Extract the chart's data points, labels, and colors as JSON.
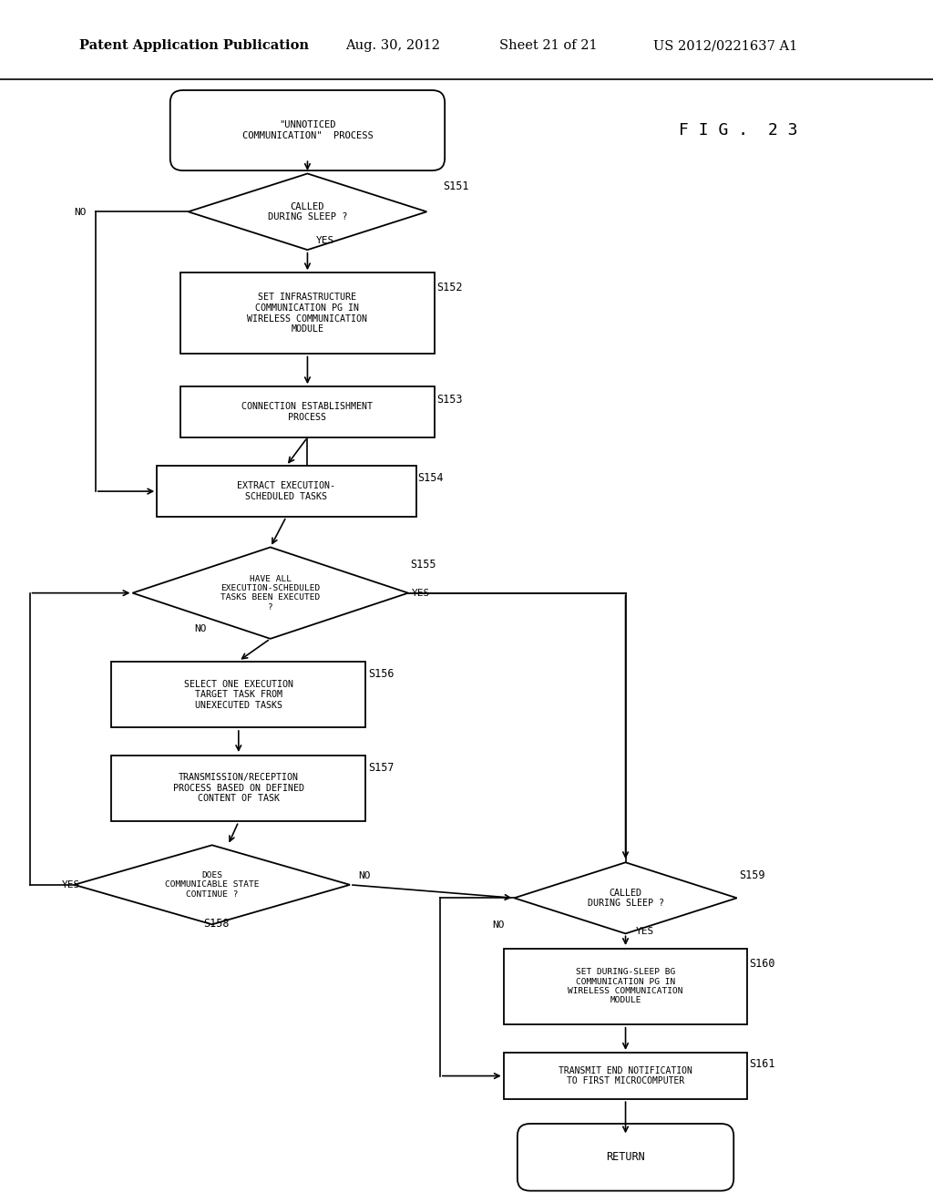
{
  "title_header": "Patent Application Publication",
  "title_date": "Aug. 30, 2012",
  "title_sheet": "Sheet 21 of 21",
  "title_patent": "US 2012/0221637 A1",
  "fig_label": "F I G .  2 3",
  "background_color": "#ffffff"
}
